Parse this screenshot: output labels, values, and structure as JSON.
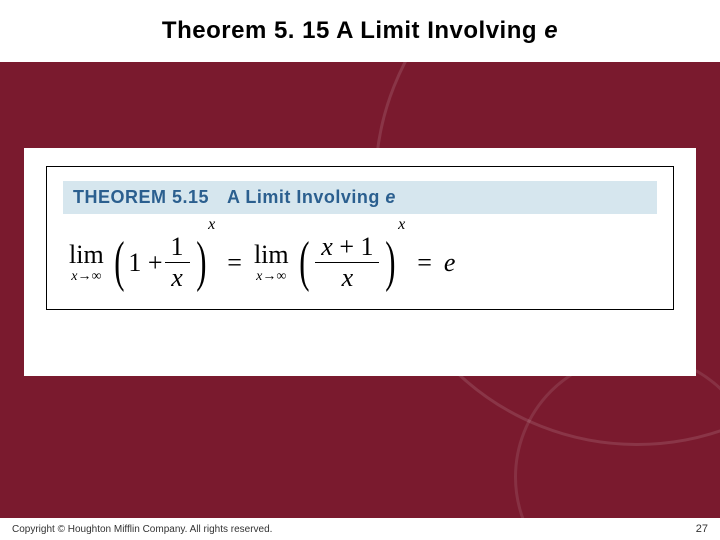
{
  "slide": {
    "title_prefix": "Theorem 5. 15 A Limit Involving ",
    "title_italic": "e"
  },
  "theorem": {
    "label": "THEOREM 5.15",
    "subtitle_prefix": "A Limit Involving ",
    "subtitle_italic": "e",
    "header_bg": "#d6e6ee",
    "header_color": "#2b5f8f",
    "frame_border": "#000000"
  },
  "formula": {
    "lim_text": "lim",
    "lim_sub_var": "x",
    "lim_sub_arrow": "→∞",
    "expr1_leading": "1 + ",
    "expr1_num": "1",
    "expr1_den": "x",
    "exponent": "x",
    "eq": " = ",
    "expr2_num_var": "x",
    "expr2_num_rest": " + 1",
    "expr2_den": "x",
    "result": "e"
  },
  "footer": {
    "copyright": "Copyright © Houghton Mifflin Company. All rights reserved.",
    "page": "27"
  },
  "colors": {
    "slide_bg": "#7a1a2e",
    "panel_bg": "#ffffff",
    "text": "#000000"
  }
}
